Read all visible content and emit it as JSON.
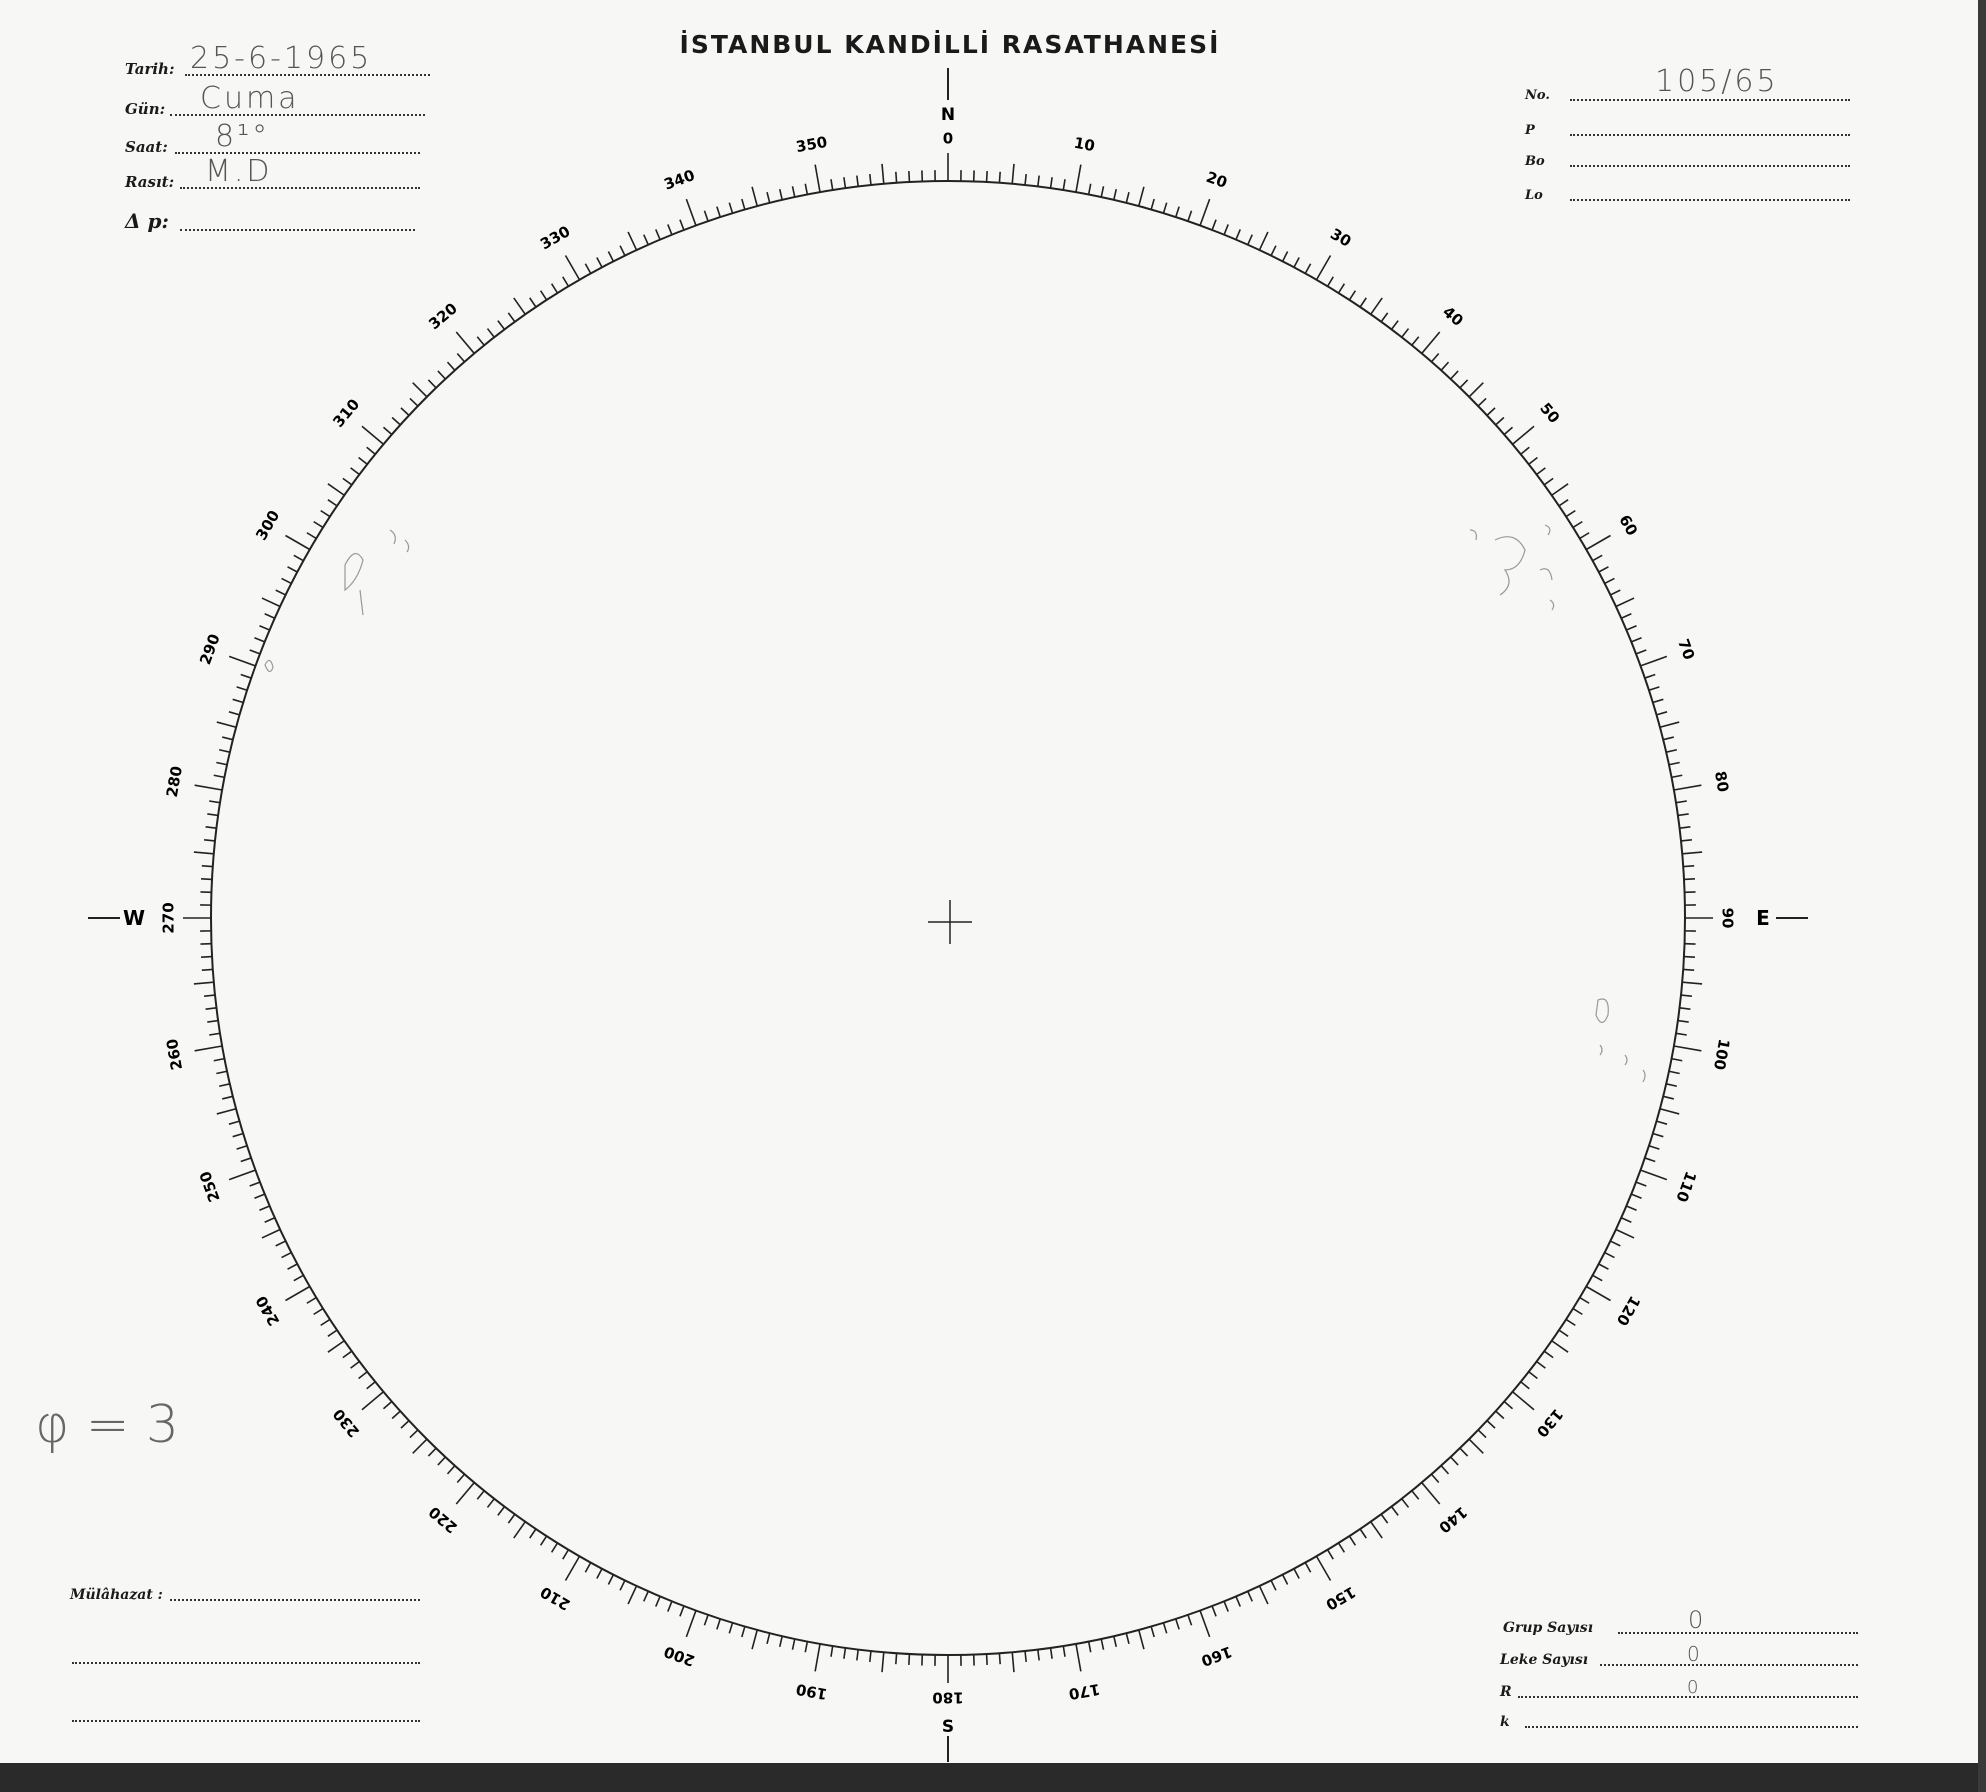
{
  "title": "İSTANBUL KANDİLLİ RASATHANESİ",
  "header_left": [
    {
      "label": "Tarih:",
      "value": "25-6-1965"
    },
    {
      "label": "Gün:",
      "value": "Cuma"
    },
    {
      "label": "Saat:",
      "value": "8¹°"
    },
    {
      "label": "Rasıt:",
      "value": "M.D"
    },
    {
      "label": "Δ p:",
      "value": ""
    }
  ],
  "header_right": [
    {
      "label": "No.",
      "value": "105/65"
    },
    {
      "label": "P",
      "value": ""
    },
    {
      "label": "Bo",
      "value": ""
    },
    {
      "label": "Lo",
      "value": ""
    }
  ],
  "compass": {
    "north": "N",
    "east": "E",
    "south": "S",
    "west": "W"
  },
  "degree_labels": [
    "0",
    "10",
    "20",
    "30",
    "40",
    "50",
    "60",
    "70",
    "80",
    "90",
    "100",
    "110",
    "120",
    "130",
    "140",
    "150",
    "160",
    "170",
    "180",
    "190",
    "200",
    "210",
    "220",
    "230",
    "240",
    "250",
    "260",
    "270",
    "280",
    "290",
    "300",
    "310",
    "320",
    "330",
    "340",
    "350"
  ],
  "annotation": "φ = 3",
  "remarks": {
    "label": "Mülâhazat :",
    "value": ""
  },
  "footer_right": [
    {
      "label": "Grup Sayısı",
      "value": "0"
    },
    {
      "label": "Leke Sayısı",
      "value": "0"
    },
    {
      "label": "R",
      "value": "0"
    },
    {
      "label": "k",
      "value": ""
    }
  ]
}
